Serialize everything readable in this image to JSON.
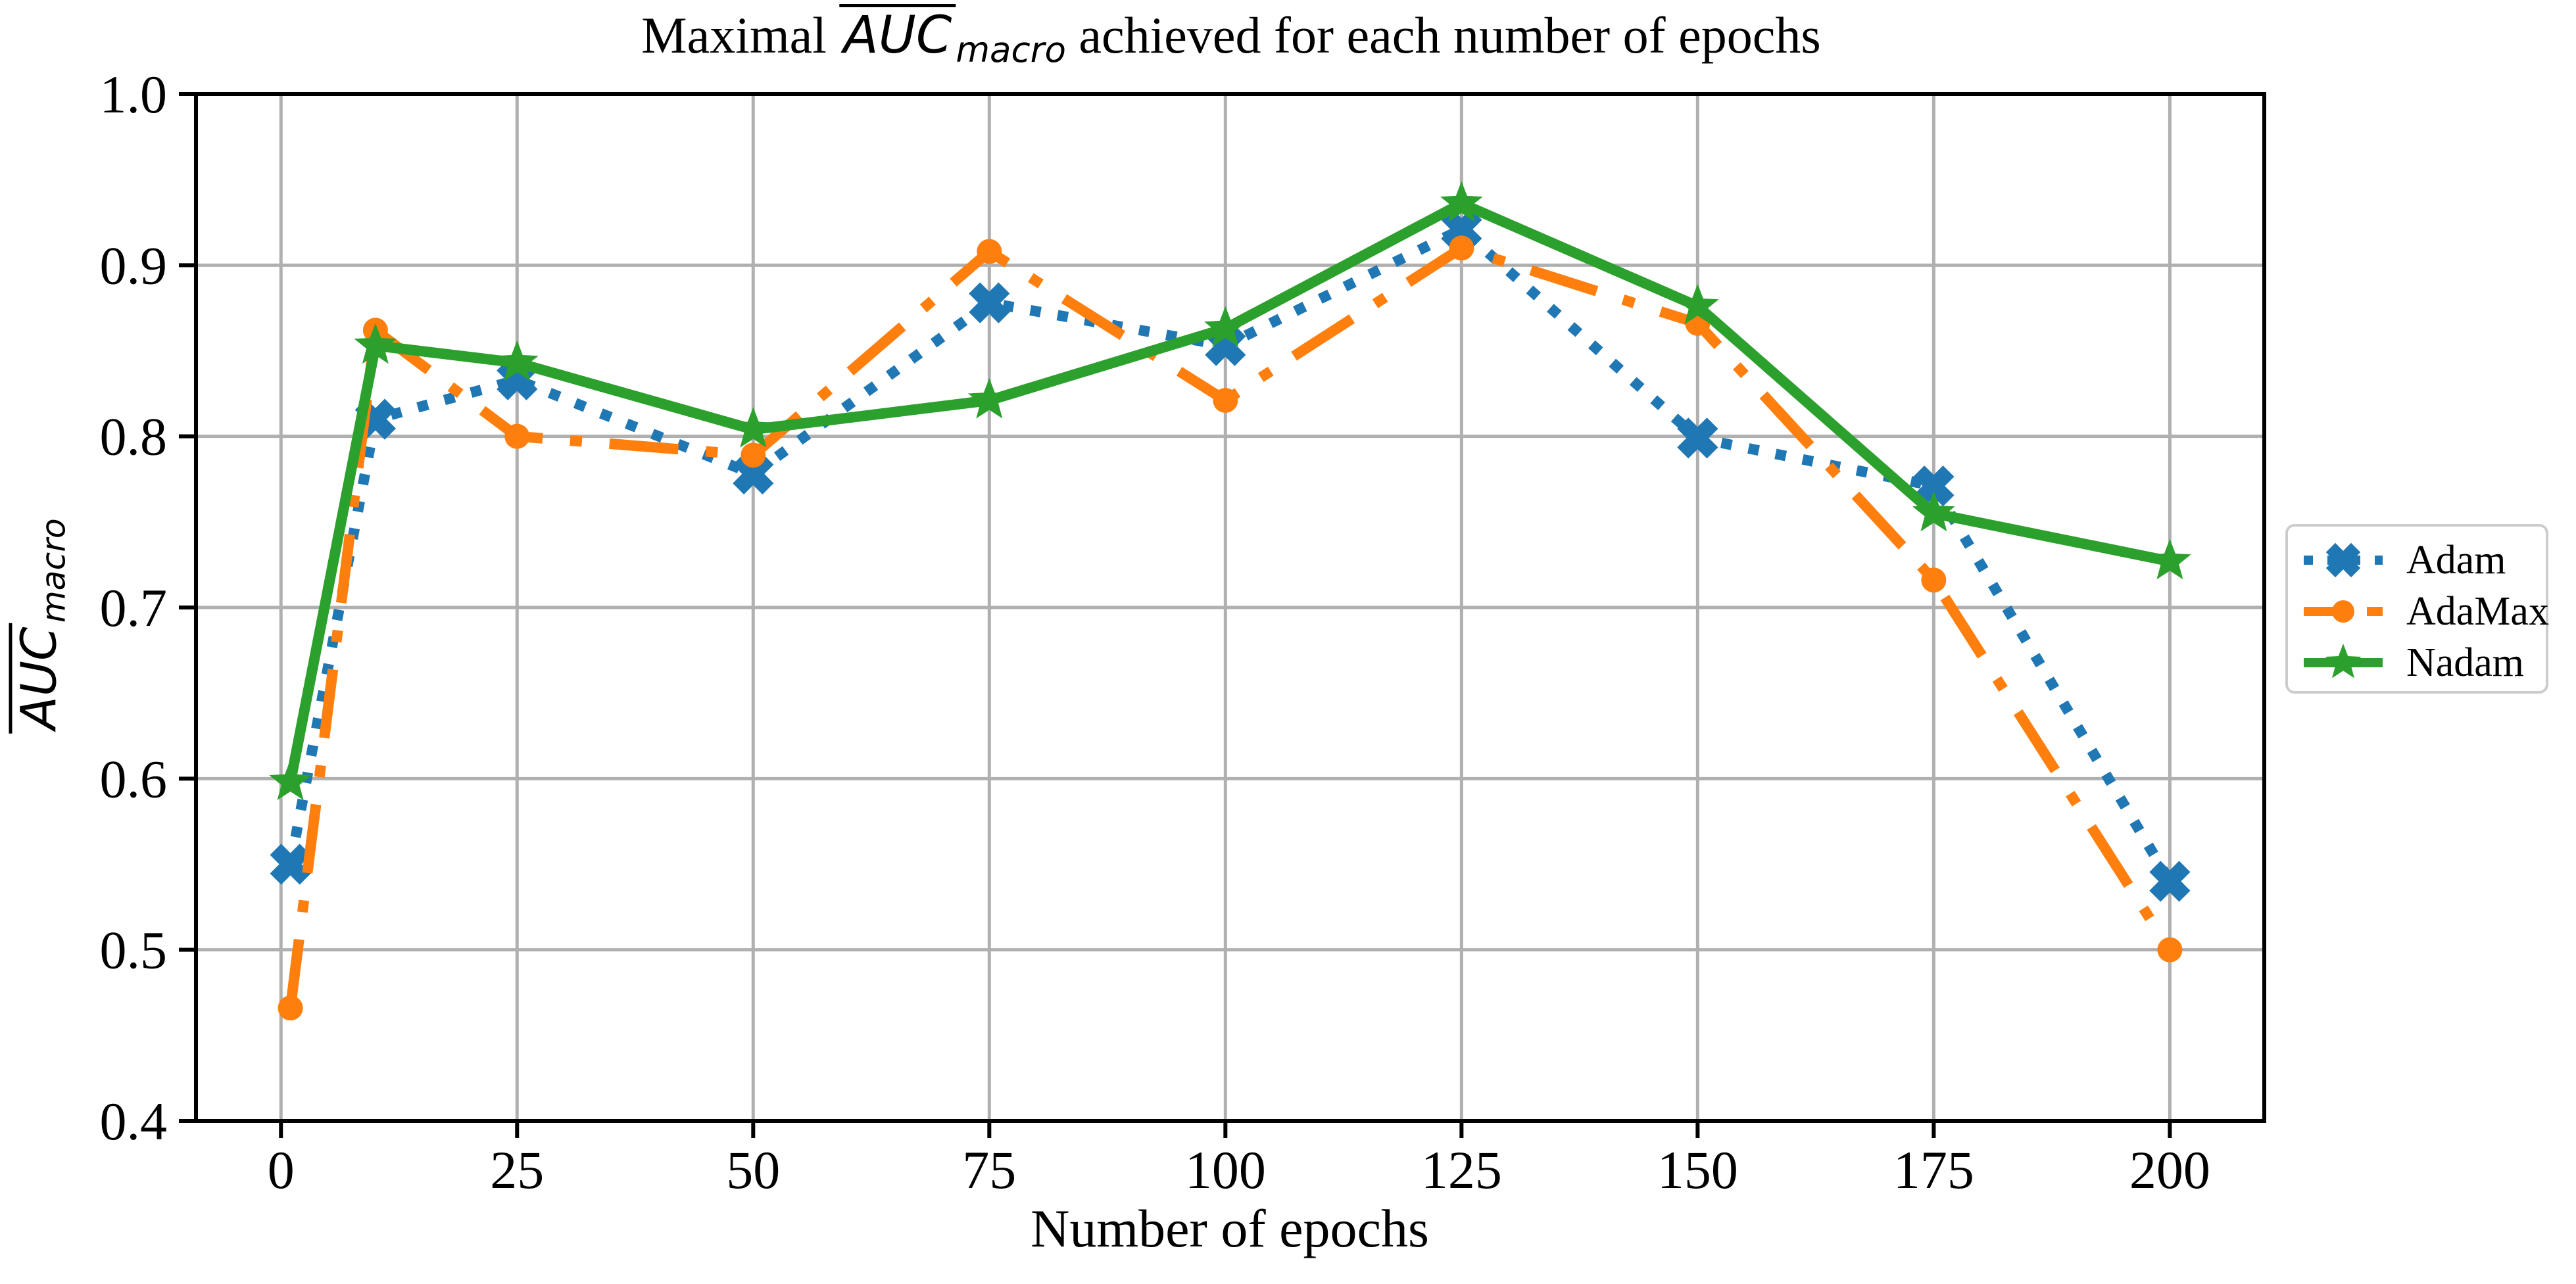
{
  "figure": {
    "title_prefix": "Maximal ",
    "title_math": "AUC",
    "title_math_sub": "macro",
    "title_suffix": " achieved for each number of epochs"
  },
  "x_axis": {
    "label": "Number of epochs"
  },
  "y_axis": {
    "label_math": "AUC",
    "label_math_sub": "macro"
  },
  "chart_data": {
    "type": "line",
    "title": "Maximal mean AUC_macro achieved for each number of epochs",
    "xlabel": "Number of epochs",
    "ylabel": "mean AUC_macro",
    "x": [
      1,
      10,
      25,
      50,
      75,
      100,
      125,
      150,
      175,
      200
    ],
    "xticks": [
      0,
      25,
      50,
      75,
      100,
      125,
      150,
      175,
      200
    ],
    "yticks": [
      0.4,
      0.5,
      0.6,
      0.7,
      0.8,
      0.9,
      1.0
    ],
    "xlim": [
      -9,
      210
    ],
    "ylim": [
      0.4,
      1.0
    ],
    "grid": true,
    "legend_position": "center right outside",
    "series": [
      {
        "name": "Adam",
        "color": "#1f77b4",
        "linestyle": "dotted",
        "marker": "X",
        "values": [
          0.55,
          0.81,
          0.833,
          0.778,
          0.878,
          0.853,
          0.921,
          0.799,
          0.771,
          0.54
        ]
      },
      {
        "name": "AdaMax",
        "color": "#ff7f0e",
        "linestyle": "dashdot",
        "marker": "circle",
        "values": [
          0.466,
          0.862,
          0.8,
          0.789,
          0.908,
          0.821,
          0.91,
          0.866,
          0.716,
          0.5
        ]
      },
      {
        "name": "Nadam",
        "color": "#2ca02c",
        "linestyle": "solid",
        "marker": "star",
        "values": [
          0.598,
          0.853,
          0.843,
          0.804,
          0.821,
          0.863,
          0.936,
          0.876,
          0.755,
          0.727
        ]
      }
    ],
    "style": {
      "grid_color": "#b0b0b0",
      "spine_color": "#000000",
      "legend_border_color": "#cccccc",
      "background": "#ffffff"
    }
  }
}
